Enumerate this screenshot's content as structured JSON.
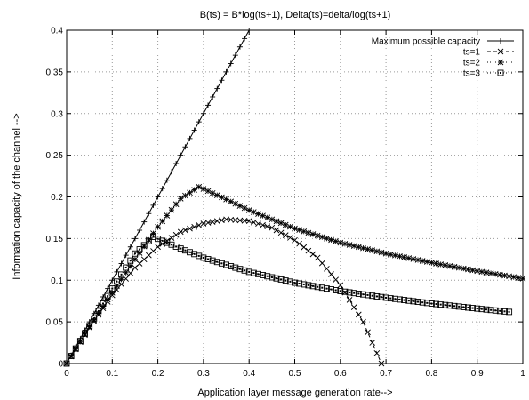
{
  "chart_data": {
    "type": "line",
    "title": "B(ts) = B*log(ts+1), Delta(ts)=delta/log(ts+1)",
    "xlabel": "Application layer message generation rate-->",
    "ylabel": "Information capacity of the channel -->",
    "xlim": [
      0,
      1
    ],
    "ylim": [
      0,
      0.4
    ],
    "xticks": [
      "0",
      "0.1",
      "0.2",
      "0.3",
      "0.4",
      "0.5",
      "0.6",
      "0.7",
      "0.8",
      "0.9",
      "1"
    ],
    "yticks": [
      "0",
      "0.05",
      "0.1",
      "0.15",
      "0.2",
      "0.25",
      "0.3",
      "0.35",
      "0.4"
    ],
    "grid": true,
    "legend_position": "top-right",
    "series": [
      {
        "name": "Maximum possible capacity",
        "marker": "plus",
        "line_style": "solid",
        "x": [
          0,
          0.05,
          0.1,
          0.15,
          0.2,
          0.25,
          0.3,
          0.35,
          0.4
        ],
        "y": [
          0,
          0.05,
          0.1,
          0.15,
          0.2,
          0.25,
          0.3,
          0.35,
          0.4
        ]
      },
      {
        "name": "ts=1",
        "marker": "cross",
        "line_style": "dashed",
        "x": [
          0,
          0.05,
          0.1,
          0.15,
          0.2,
          0.25,
          0.3,
          0.35,
          0.4,
          0.45,
          0.5,
          0.55,
          0.6,
          0.65,
          0.69
        ],
        "y": [
          0,
          0.043,
          0.082,
          0.115,
          0.14,
          0.158,
          0.168,
          0.173,
          0.171,
          0.163,
          0.148,
          0.127,
          0.094,
          0.05,
          0.0
        ]
      },
      {
        "name": "ts=2",
        "marker": "star",
        "line_style": "dotted",
        "x": [
          0,
          0.05,
          0.1,
          0.15,
          0.2,
          0.25,
          0.29,
          0.35,
          0.4,
          0.5,
          0.6,
          0.7,
          0.8,
          0.9,
          1.0
        ],
        "y": [
          0,
          0.044,
          0.085,
          0.125,
          0.164,
          0.198,
          0.212,
          0.197,
          0.184,
          0.162,
          0.145,
          0.132,
          0.121,
          0.111,
          0.102
        ]
      },
      {
        "name": "ts=3",
        "marker": "box",
        "line_style": "dotted",
        "x": [
          0,
          0.05,
          0.1,
          0.15,
          0.19,
          0.25,
          0.3,
          0.4,
          0.5,
          0.6,
          0.7,
          0.8,
          0.9,
          0.97
        ],
        "y": [
          0,
          0.045,
          0.09,
          0.132,
          0.152,
          0.138,
          0.127,
          0.11,
          0.097,
          0.087,
          0.079,
          0.072,
          0.066,
          0.062
        ]
      }
    ]
  }
}
